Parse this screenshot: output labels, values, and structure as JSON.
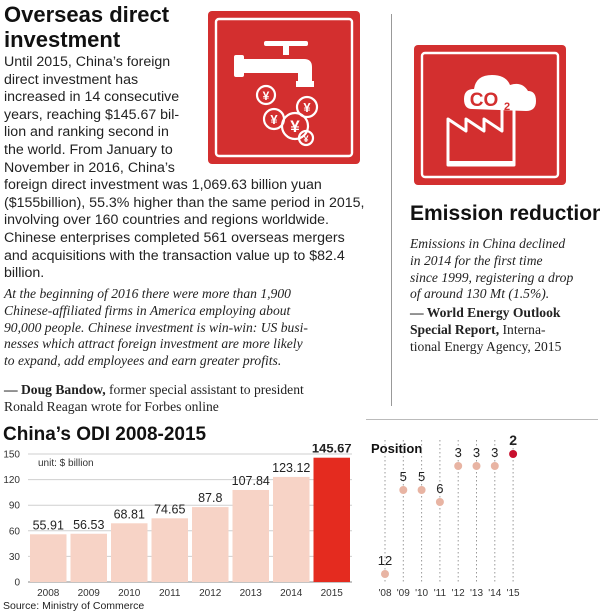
{
  "odi_article": {
    "title_line1": "Overseas direct",
    "title_line2": "investment",
    "body_lines": [
      "Until 2015, China’s foreign",
      "direct investment has",
      "increased in 14 consecutive",
      "years, reaching $145.67 bil-",
      "lion and ranking second in",
      "the world. From January to",
      "November in 2016, China’s",
      "foreign direct investment was 1,069.63 billion yuan",
      "($155billion), 55.3% higher than the same period in 2015,",
      "involving over 160 countries and regions worldwide.",
      "Chinese enterprises completed 561 overseas mergers",
      "and acquisitions with the transaction value up to $82.4",
      "billion."
    ],
    "quote_lines": [
      "At the beginning of 2016 there were more than 1,900",
      "Chinese-affiliated firms in America employing about",
      "90,000 people. Chinese investment is win-win: US busi-",
      "nesses which attract foreign investment are more likely",
      "to expand, add employees and earn greater profits."
    ],
    "attribution_name": "— Doug Bandow,",
    "attribution_rest": " former special assistant to president",
    "attribution_line2": "Ronald Reagan wrote for Forbes online",
    "icon": "faucet-money-icon",
    "icon_symbols": [
      "¥",
      "¥",
      "¥",
      "¥",
      "¥"
    ]
  },
  "emission": {
    "icon": "factory-co2-icon",
    "co2_label": "CO",
    "co2_sub": "2",
    "title": "Emission reduction",
    "quote_lines": [
      "Emissions in China declined",
      "in 2014 for the first time",
      "since 1999, registering a drop",
      "of around 130 Mt (1.5%)."
    ],
    "attr_line1": "— World Energy Outlook",
    "attr_line2_bold": "Special Report,",
    "attr_line2_rest": " Interna-",
    "attr_line3": "tional Energy Agency, 2015"
  },
  "colors": {
    "accent_red": "#d32f2f",
    "bar_light": "#f7d3c6",
    "bar_dark": "#e42b1f",
    "dot_light": "#e8b4a3",
    "dot_dark": "#c8102e"
  },
  "chart_data": [
    {
      "type": "bar",
      "title": "China’s ODI 2008-2015",
      "unit_label": "unit: $ billion",
      "categories": [
        "2008",
        "2009",
        "2010",
        "2011",
        "2012",
        "2013",
        "2014",
        "2015"
      ],
      "values": [
        55.91,
        56.53,
        68.81,
        74.65,
        87.8,
        107.84,
        123.12,
        145.67
      ],
      "value_labels": [
        "55.91",
        "56.53",
        "68.81",
        "74.65",
        "87.8",
        "107.84",
        "123.12",
        "145.67"
      ],
      "yticks": [
        0,
        30,
        60,
        90,
        120,
        150
      ],
      "ylim": [
        0,
        150
      ],
      "grid": true,
      "source": "Source: Ministry of Commerce"
    },
    {
      "type": "scatter",
      "title": "Position",
      "categories": [
        "'08",
        "'09",
        "'10",
        "'11",
        "'12",
        "'13",
        "'14",
        "'15"
      ],
      "values": [
        12,
        5,
        5,
        6,
        3,
        3,
        3,
        2
      ],
      "value_labels": [
        "12",
        "5",
        "5",
        "6",
        "3",
        "3",
        "3",
        "2"
      ],
      "inverted_y": true
    }
  ]
}
